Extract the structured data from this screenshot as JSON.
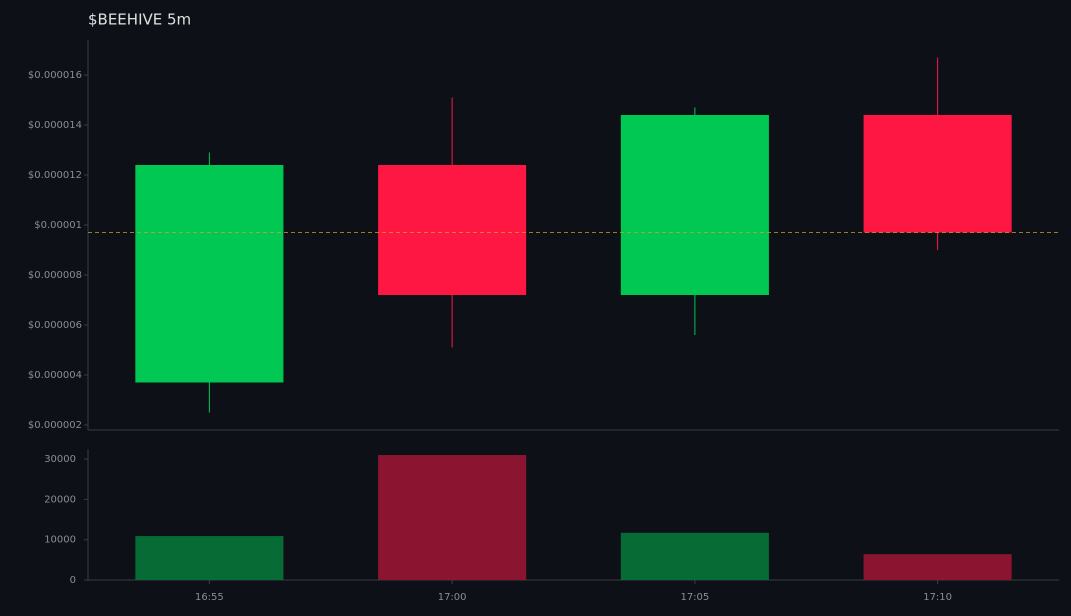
{
  "chart_data": {
    "type": "candlestick",
    "title": "$BEEHIVE 5m",
    "categories": [
      "16:55",
      "17:00",
      "17:05",
      "17:10"
    ],
    "open": [
      3.7e-06,
      1.24e-05,
      7.2e-06,
      1.44e-05
    ],
    "high": [
      1.29e-05,
      1.51e-05,
      1.47e-05,
      1.67e-05
    ],
    "low": [
      2.5e-06,
      5.1e-06,
      5.6e-06,
      9e-06
    ],
    "close": [
      1.24e-05,
      7.2e-06,
      1.44e-05,
      9.7e-06
    ],
    "up_color": "#00c853",
    "down_color": "#ff1744",
    "ylim": [
      1.8e-06,
      1.74e-05
    ],
    "yticks": [
      {
        "value": 2e-06,
        "label": "$0.000002"
      },
      {
        "value": 4e-06,
        "label": "$0.000004"
      },
      {
        "value": 6e-06,
        "label": "$0.000006"
      },
      {
        "value": 8e-06,
        "label": "$0.000008"
      },
      {
        "value": 1e-05,
        "label": "$0.00001"
      },
      {
        "value": 1.2e-05,
        "label": "$0.000012"
      },
      {
        "value": 1.4e-05,
        "label": "$0.000014"
      },
      {
        "value": 1.6e-05,
        "label": "$0.000016"
      }
    ],
    "last_price": 9.7e-06,
    "last_price_color": "#c9a227",
    "volume": {
      "values": [
        10900,
        31000,
        11700,
        6400
      ],
      "ylim": [
        0,
        32500
      ],
      "yticks": [
        0,
        10000,
        20000,
        30000
      ],
      "up_color": "#066b35",
      "down_color": "#8b1530"
    }
  }
}
